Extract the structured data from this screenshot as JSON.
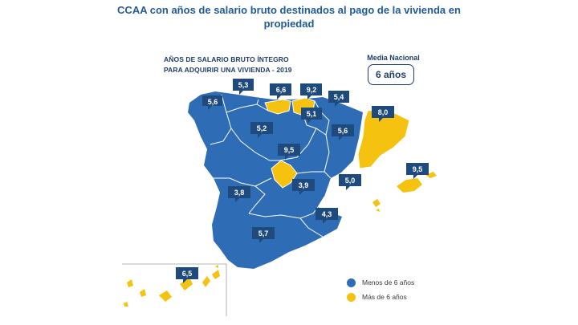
{
  "header": {
    "title": "CCAA con años de salario bruto destinados al pago de la vivienda en propiedad"
  },
  "map": {
    "subtitle_line1": "AÑOS DE SALARIO BRUTO ÍNTEGRO",
    "subtitle_line2": "PARA ADQUIRIR UNA VIVIENDA - 2019",
    "national_average_label": "Media Nacional",
    "national_average_value": "6 años",
    "colors": {
      "below": "#2e6cb6",
      "above": "#f5c20f",
      "badge": "#1f4a7e",
      "border": "#ffffff"
    },
    "regions": [
      {
        "name": "Galicia",
        "value": "5,6",
        "category": "below"
      },
      {
        "name": "Asturias",
        "value": "5,3",
        "category": "below"
      },
      {
        "name": "Cantabria",
        "value": "6,6",
        "category": "above"
      },
      {
        "name": "País Vasco",
        "value": "9,2",
        "category": "above"
      },
      {
        "name": "Navarra",
        "value": "5,4",
        "category": "below"
      },
      {
        "name": "La Rioja",
        "value": "5,1",
        "category": "below"
      },
      {
        "name": "Castilla y León",
        "value": "5,2",
        "category": "below"
      },
      {
        "name": "Aragón",
        "value": "5,6",
        "category": "below"
      },
      {
        "name": "Cataluña",
        "value": "8,0",
        "category": "above"
      },
      {
        "name": "Madrid",
        "value": "9,5",
        "category": "above"
      },
      {
        "name": "Extremadura",
        "value": "3,8",
        "category": "below"
      },
      {
        "name": "Castilla-La Mancha",
        "value": "3,9",
        "category": "below"
      },
      {
        "name": "Comunidad Valenciana",
        "value": "5,0",
        "category": "below"
      },
      {
        "name": "Región de Murcia",
        "value": "4,3",
        "category": "below"
      },
      {
        "name": "Andalucía",
        "value": "5,7",
        "category": "below"
      },
      {
        "name": "Islas Baleares",
        "value": "9,5",
        "category": "above"
      },
      {
        "name": "Canarias",
        "value": "6,5",
        "category": "above"
      }
    ]
  },
  "legend": {
    "items": [
      {
        "label": "Menos de 6 años",
        "color": "#2e6cb6"
      },
      {
        "label": "Más de 6 años",
        "color": "#f5c20f"
      }
    ]
  }
}
